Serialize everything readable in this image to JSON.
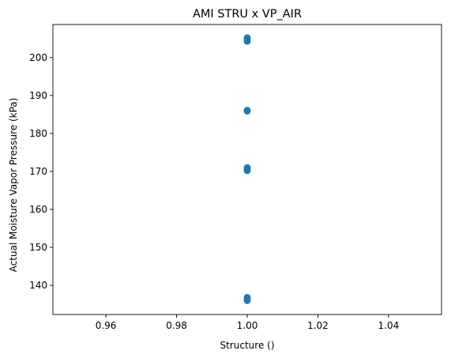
{
  "chart_data": {
    "type": "scatter",
    "title": "AMI STRU x VP_AIR",
    "xlabel": "Structure ()",
    "ylabel": "Actual Moisture Vapor Pressure (kPa)",
    "xlim": [
      0.945,
      1.055
    ],
    "ylim": [
      132.3,
      208.7
    ],
    "x_ticks": [
      0.96,
      0.98,
      1.0,
      1.02,
      1.04
    ],
    "x_tick_labels": [
      "0.96",
      "0.98",
      "1.00",
      "1.02",
      "1.04"
    ],
    "y_ticks": [
      140,
      150,
      160,
      170,
      180,
      190,
      200
    ],
    "y_tick_labels": [
      "140",
      "150",
      "160",
      "170",
      "180",
      "190",
      "200"
    ],
    "grid": false,
    "marker_color": "#1f77b4",
    "points": [
      {
        "x": 1.0,
        "y": 205.2
      },
      {
        "x": 1.0,
        "y": 204.8
      },
      {
        "x": 1.0,
        "y": 204.3
      },
      {
        "x": 1.0,
        "y": 186.1
      },
      {
        "x": 1.0,
        "y": 185.9
      },
      {
        "x": 1.0,
        "y": 171.0
      },
      {
        "x": 1.0,
        "y": 170.6
      },
      {
        "x": 1.0,
        "y": 170.2
      },
      {
        "x": 1.0,
        "y": 136.8
      },
      {
        "x": 1.0,
        "y": 136.4
      },
      {
        "x": 1.0,
        "y": 136.0
      }
    ]
  }
}
